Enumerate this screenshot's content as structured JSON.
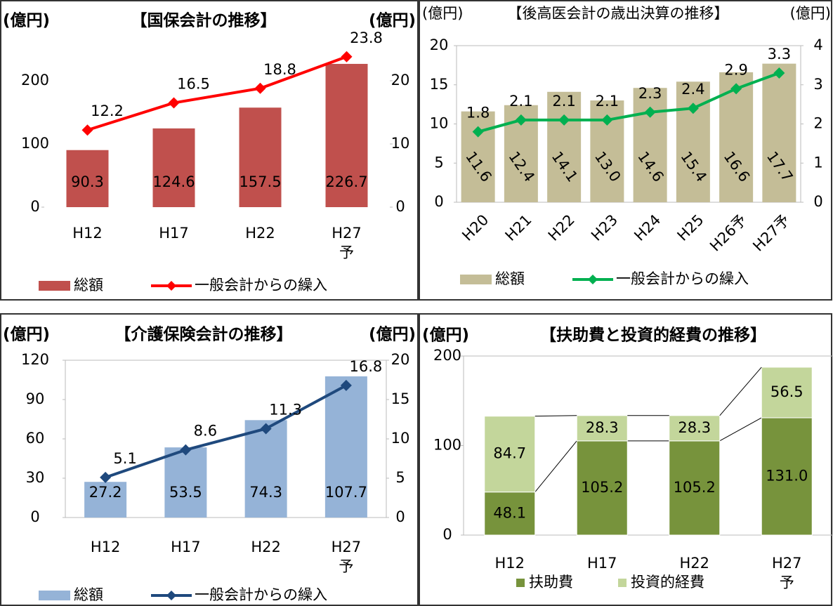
{
  "chart_data": [
    {
      "type": "combo",
      "title": "【国保会計の推移】",
      "y_label": "(億円)",
      "y2_label": "(億円)",
      "categories": [
        "H12",
        "H17",
        "H22",
        "H27\n予"
      ],
      "series": [
        {
          "name": "総額",
          "color": "#c0504d",
          "values": [
            90.3,
            124.6,
            157.5,
            226.7
          ]
        },
        {
          "name": "一般会計からの繰入",
          "color": "#ff0000",
          "axis": "y2",
          "values": [
            12.2,
            16.5,
            18.8,
            23.8
          ]
        }
      ],
      "ylim": [
        0,
        250
      ],
      "yticks": [
        0,
        100,
        200
      ],
      "y2lim": [
        0,
        25
      ],
      "y2ticks": [
        0,
        10,
        20
      ]
    },
    {
      "type": "combo",
      "title": "【後高医会計の歳出決算の推移】",
      "y_label": "(億円)",
      "y2_label": "(億円)",
      "categories": [
        "H20",
        "H21",
        "H22",
        "H23",
        "H24",
        "H25",
        "H26予",
        "H27予"
      ],
      "series": [
        {
          "name": "総額",
          "color": "#c4bd97",
          "values": [
            11.6,
            12.4,
            14.1,
            13.0,
            14.6,
            15.4,
            16.6,
            17.7
          ],
          "value_labels": [
            "11.6",
            "12.4",
            "14.1",
            "13.0",
            "14.6",
            "15.4",
            "16.6",
            "17.7"
          ]
        },
        {
          "name": "一般会計からの繰入",
          "color": "#00b050",
          "axis": "y2",
          "values": [
            1.8,
            2.1,
            2.1,
            2.1,
            2.3,
            2.4,
            2.9,
            3.3
          ]
        }
      ],
      "ylim": [
        0,
        20
      ],
      "yticks": [
        0,
        5,
        10,
        15,
        20
      ],
      "y2lim": [
        0,
        4
      ],
      "y2ticks": [
        0,
        1,
        2,
        3,
        4
      ]
    },
    {
      "type": "combo",
      "title": "【介護保険会計の推移】",
      "y_label": "(億円)",
      "y2_label": "(億円)",
      "categories": [
        "H12",
        "H17",
        "H22",
        "H27\n予"
      ],
      "series": [
        {
          "name": "総額",
          "color": "#95b3d7",
          "values": [
            27.2,
            53.5,
            74.3,
            107.7
          ]
        },
        {
          "name": "一般会計からの繰入",
          "color": "#1f497d",
          "axis": "y2",
          "values": [
            5.1,
            8.6,
            11.3,
            16.8
          ]
        }
      ],
      "ylim": [
        0,
        120
      ],
      "yticks": [
        0,
        30,
        60,
        90,
        120
      ],
      "y2lim": [
        0,
        20
      ],
      "y2ticks": [
        0,
        5,
        10,
        15,
        20
      ]
    },
    {
      "type": "stacked",
      "title": "【扶助費と投資的経費の推移】",
      "y_label": "(億円)",
      "categories": [
        "H12",
        "H17",
        "H22",
        "H27\n予"
      ],
      "series": [
        {
          "name": "扶助費",
          "color": "#77933c",
          "values": [
            48.1,
            105.2,
            105.2,
            131.0
          ],
          "value_labels": [
            "48.1",
            "105.2",
            "105.2",
            "131.0"
          ]
        },
        {
          "name": "投資的経費",
          "color": "#c3d69b",
          "values": [
            84.7,
            28.3,
            28.3,
            56.5
          ]
        }
      ],
      "ylim": [
        0,
        200
      ],
      "yticks": [
        0,
        100,
        200
      ]
    }
  ]
}
